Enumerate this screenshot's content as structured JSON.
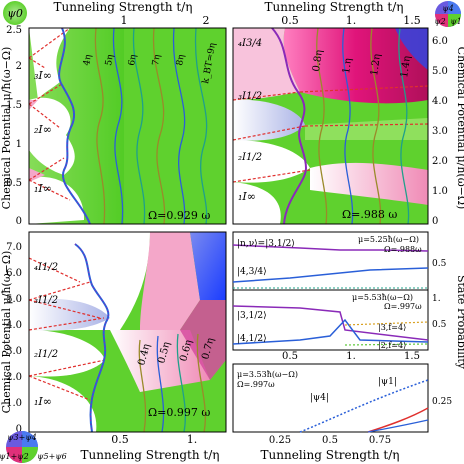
{
  "labels": {
    "psi0": "ψ0",
    "psi1": "ψ1",
    "psi2": "ψ2",
    "psi4": "ψ4",
    "psi34": "ψ3+ψ4",
    "psi12": "ψ1+ψ2",
    "psi56": "ψ5+ψ6",
    "top_xlabel_left": "Tunneling Strength t/η",
    "top_xlabel_right": "Tunneling Strength t/η",
    "bottom_xlabel_left": "Tunneling Strength t/η",
    "bottom_xlabel_right": "Tunneling Strength t/η",
    "ylabel_left_top": "Chemical Potential μ/ħ(ω−Ω)",
    "ylabel_left_bottom": "Chemical Potential μ/ħ(ω−Ω)",
    "ylabel_right": "Chemical Potential μ/ħ(ω−Ω)",
    "ylabel_state": "State Probability"
  },
  "colors": {
    "green": "#5fd12e",
    "white": "#ffffff",
    "pink": "#f4a7c9",
    "blue_shade": "#c9d0ef",
    "red_dashed": "#e0302e",
    "blue_curve": "#2a5fd8",
    "purple_curve": "#8a2ab8",
    "olive": "#9a8a2a",
    "teal": "#1fa08a"
  },
  "chart_data": [
    {
      "id": "A",
      "type": "line",
      "xlim": [
        0,
        2.2
      ],
      "ylim": [
        0,
        2.5
      ],
      "xticks": [
        "1",
        "2"
      ],
      "yticks": [
        "0",
        "0.5",
        "1",
        "1.5",
        "2",
        "2.5"
      ],
      "annotations": [
        "₃I∞",
        "₂I∞",
        "₁I∞",
        "4η",
        "5η",
        "6η",
        "7η",
        "8η",
        "k_BT=9η",
        "Ω=0.929 ω"
      ],
      "region_colors": [
        "green",
        "white",
        "pink"
      ]
    },
    {
      "id": "B",
      "type": "line",
      "xlim": [
        0.2,
        1.7
      ],
      "ylim": [
        0,
        6.8
      ],
      "xticks": [
        "0.5",
        "1.",
        "1.5"
      ],
      "yticks": [
        "0",
        "1.0",
        "2.0",
        "3.0",
        "4.0",
        "5.0",
        "6.0"
      ],
      "annotations": [
        "₄I3/4",
        "₃I1/2",
        "₂I1/2",
        "₁I∞",
        "0.8η",
        "1.η",
        "1.2η",
        "1.4η",
        "Ω=.988 ω"
      ]
    },
    {
      "id": "C",
      "type": "line",
      "xlim": [
        0.2,
        1.2
      ],
      "ylim": [
        0,
        8
      ],
      "xticks": [
        "0.5",
        "1."
      ],
      "yticks": [
        "0",
        "1.0",
        "2.0",
        "3.0",
        "4.0",
        "5.0",
        "6.0",
        "7.0"
      ],
      "annotations": [
        "₄I1/2",
        "₃I1/2",
        "₂I1/2",
        "₁I∞",
        "0.4η",
        "0.5η",
        "0.6η",
        "0.7η",
        "Ω=0.997 ω"
      ]
    },
    {
      "id": "D",
      "type": "line",
      "xlim": [
        0.2,
        1.7
      ],
      "ylim": [
        0,
        1
      ],
      "yticks": [
        "0.5"
      ],
      "texts": [
        "|n,ν⟩=|3,1/2⟩",
        "|4,3/4⟩",
        "μ=5.25ħ(ω−Ω)",
        "Ω=.988ω"
      ]
    },
    {
      "id": "E",
      "type": "line",
      "xlim": [
        0.2,
        1.7
      ],
      "ylim": [
        0,
        1
      ],
      "xticks": [
        "0.5",
        "1.",
        "1.5"
      ],
      "yticks": [
        "0.5",
        "1."
      ],
      "texts": [
        "|3,1/2⟩",
        "|4,1/2⟩",
        "|3,f=4⟩",
        "|2,f=4⟩",
        "μ=5.53ħ(ω−Ω)",
        "Ω=.997ω"
      ]
    },
    {
      "id": "F",
      "type": "line",
      "xlim": [
        0,
        1
      ],
      "ylim": [
        0,
        0.35
      ],
      "xticks": [
        "0.25",
        "0.5",
        "0.75"
      ],
      "yticks": [
        "0.25"
      ],
      "texts": [
        "μ=3.53ħ(ω−Ω)",
        "Ω=.997ω",
        "|ψ4|",
        "|ψ1|"
      ]
    }
  ]
}
